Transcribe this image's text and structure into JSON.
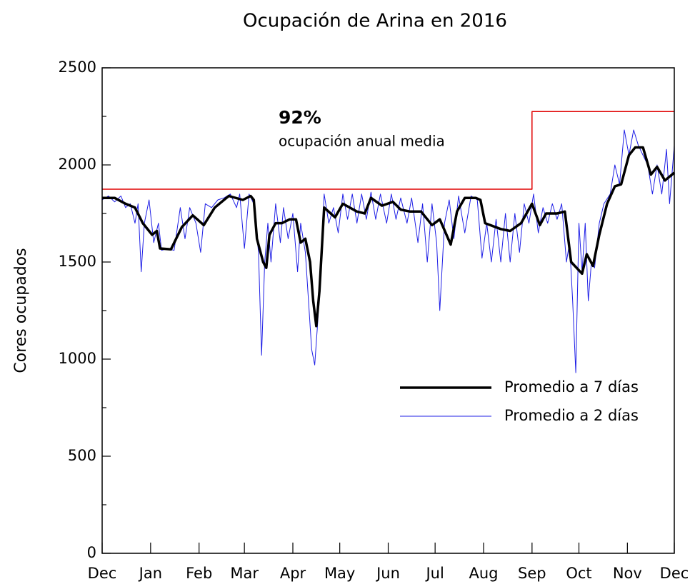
{
  "chart_data": {
    "type": "line",
    "title": "Ocupación de Arina en 2016",
    "ylabel": "Cores ocupados",
    "annotations": [
      "92%",
      "ocupación anual media"
    ],
    "xlim": [
      0,
      366
    ],
    "xticks": [
      {
        "value": 0,
        "label": "Dec"
      },
      {
        "value": 31,
        "label": "Jan"
      },
      {
        "value": 62,
        "label": "Feb"
      },
      {
        "value": 91,
        "label": "Mar"
      },
      {
        "value": 122,
        "label": "Apr"
      },
      {
        "value": 152,
        "label": "May"
      },
      {
        "value": 183,
        "label": "Jun"
      },
      {
        "value": 213,
        "label": "Jul"
      },
      {
        "value": 244,
        "label": "Aug"
      },
      {
        "value": 275,
        "label": "Sep"
      },
      {
        "value": 305,
        "label": "Oct"
      },
      {
        "value": 336,
        "label": "Nov"
      },
      {
        "value": 366,
        "label": "Dec"
      }
    ],
    "ylim": [
      0,
      2500
    ],
    "yticks": [
      0,
      500,
      1000,
      1500,
      2000,
      2500
    ],
    "yminorticks": [
      250,
      750,
      1250,
      1750,
      2250
    ],
    "grid": false,
    "legend": "lower right",
    "capacity": {
      "color": "#e00000",
      "x": [
        0,
        275,
        275,
        366
      ],
      "values": [
        1875,
        1875,
        2275,
        2275
      ]
    },
    "series": [
      {
        "name": "Promedio a 7 días",
        "color": "#000000",
        "width": 3.5,
        "x": [
          0,
          8,
          15,
          21,
          26,
          32,
          35,
          37,
          44,
          51,
          58,
          65,
          72,
          81,
          90,
          95,
          97,
          99,
          103,
          105,
          107,
          111,
          115,
          120,
          124,
          127,
          130,
          133,
          135,
          137,
          139,
          142,
          149,
          154,
          163,
          168,
          172,
          179,
          186,
          191,
          197,
          204,
          211,
          216,
          223,
          227,
          232,
          239,
          242,
          245,
          255,
          261,
          268,
          275,
          280,
          284,
          291,
          296,
          300,
          307,
          310,
          314,
          318,
          323,
          328,
          332,
          337,
          341,
          346,
          351,
          355,
          360,
          366
        ],
        "values": [
          1830,
          1830,
          1800,
          1780,
          1700,
          1640,
          1660,
          1570,
          1565,
          1680,
          1740,
          1690,
          1780,
          1840,
          1820,
          1840,
          1820,
          1620,
          1500,
          1470,
          1640,
          1700,
          1700,
          1720,
          1720,
          1600,
          1620,
          1500,
          1300,
          1170,
          1350,
          1780,
          1730,
          1800,
          1760,
          1750,
          1830,
          1790,
          1810,
          1770,
          1760,
          1760,
          1690,
          1720,
          1590,
          1760,
          1830,
          1830,
          1820,
          1700,
          1670,
          1660,
          1700,
          1800,
          1690,
          1750,
          1750,
          1760,
          1500,
          1440,
          1540,
          1480,
          1640,
          1800,
          1890,
          1900,
          2050,
          2090,
          2090,
          1950,
          1990,
          1920,
          1960
        ]
      },
      {
        "name": "Promedio a 2 días",
        "color": "#1f1fe6",
        "width": 1,
        "x": [
          0,
          4,
          8,
          12,
          15,
          18,
          21,
          23,
          25,
          27,
          30,
          33,
          36,
          38,
          42,
          46,
          50,
          53,
          56,
          60,
          63,
          66,
          70,
          74,
          78,
          82,
          86,
          88,
          91,
          94,
          97,
          100,
          102,
          104,
          106,
          108,
          111,
          114,
          116,
          119,
          122,
          125,
          127,
          130,
          132,
          134,
          136,
          138,
          140,
          142,
          145,
          148,
          151,
          154,
          157,
          160,
          163,
          166,
          169,
          172,
          175,
          178,
          182,
          185,
          188,
          191,
          195,
          198,
          202,
          205,
          208,
          211,
          214,
          216,
          219,
          222,
          225,
          228,
          232,
          236,
          240,
          243,
          246,
          249,
          252,
          255,
          258,
          261,
          264,
          267,
          270,
          273,
          276,
          279,
          282,
          285,
          288,
          291,
          294,
          297,
          299,
          301,
          303,
          305,
          307,
          309,
          311,
          313,
          315,
          318,
          321,
          325,
          328,
          331,
          334,
          337,
          340,
          343,
          346,
          349,
          352,
          355,
          358,
          361,
          363,
          366
        ],
        "values": [
          1820,
          1840,
          1810,
          1840,
          1780,
          1800,
          1700,
          1800,
          1450,
          1700,
          1820,
          1600,
          1700,
          1560,
          1570,
          1560,
          1780,
          1620,
          1780,
          1700,
          1550,
          1800,
          1780,
          1820,
          1830,
          1850,
          1780,
          1850,
          1570,
          1850,
          1800,
          1550,
          1020,
          1500,
          1700,
          1500,
          1800,
          1600,
          1780,
          1620,
          1750,
          1450,
          1700,
          1550,
          1300,
          1050,
          970,
          1200,
          1500,
          1850,
          1700,
          1780,
          1650,
          1850,
          1720,
          1850,
          1700,
          1850,
          1720,
          1860,
          1720,
          1850,
          1700,
          1850,
          1720,
          1830,
          1700,
          1830,
          1600,
          1800,
          1500,
          1800,
          1600,
          1250,
          1700,
          1820,
          1620,
          1840,
          1650,
          1840,
          1820,
          1520,
          1700,
          1500,
          1720,
          1500,
          1750,
          1500,
          1750,
          1550,
          1800,
          1700,
          1850,
          1650,
          1780,
          1700,
          1800,
          1720,
          1800,
          1500,
          1600,
          1300,
          930,
          1700,
          1450,
          1700,
          1300,
          1500,
          1470,
          1700,
          1800,
          1850,
          2000,
          1900,
          2180,
          2050,
          2180,
          2100,
          2050,
          2000,
          1850,
          2000,
          1850,
          2080,
          1800,
          2100
        ]
      }
    ]
  }
}
